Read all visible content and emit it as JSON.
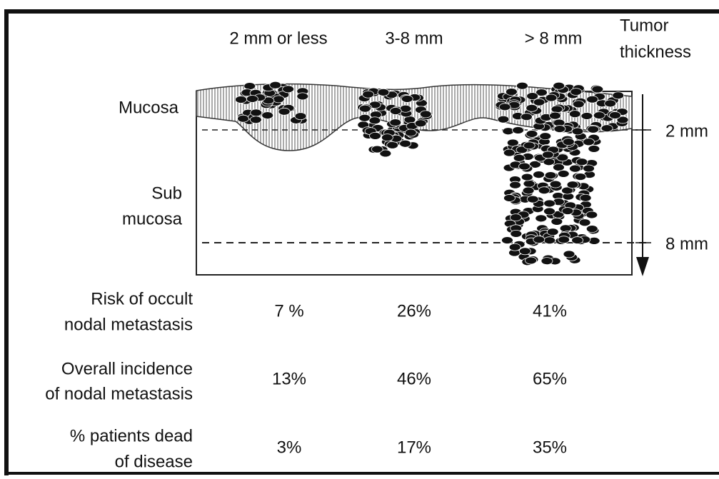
{
  "columns": [
    "2 mm or less",
    "3-8 mm",
    "> 8 mm"
  ],
  "axis_label": [
    "Tumor",
    "thickness"
  ],
  "layers": [
    {
      "label": [
        "Mucosa"
      ]
    },
    {
      "label": [
        "Sub",
        "mucosa"
      ]
    }
  ],
  "depth_marks": [
    "2 mm",
    "8 mm"
  ],
  "rows": [
    {
      "label": [
        "Risk of occult",
        "nodal metastasis"
      ],
      "values": [
        "7 %",
        "26%",
        "41%"
      ]
    },
    {
      "label": [
        "Overall incidence",
        "of nodal metastasis"
      ],
      "values": [
        "13%",
        "46%",
        "65%"
      ]
    },
    {
      "label": [
        "% patients dead",
        "of disease"
      ],
      "values": [
        "3%",
        "17%",
        "35%"
      ]
    }
  ]
}
